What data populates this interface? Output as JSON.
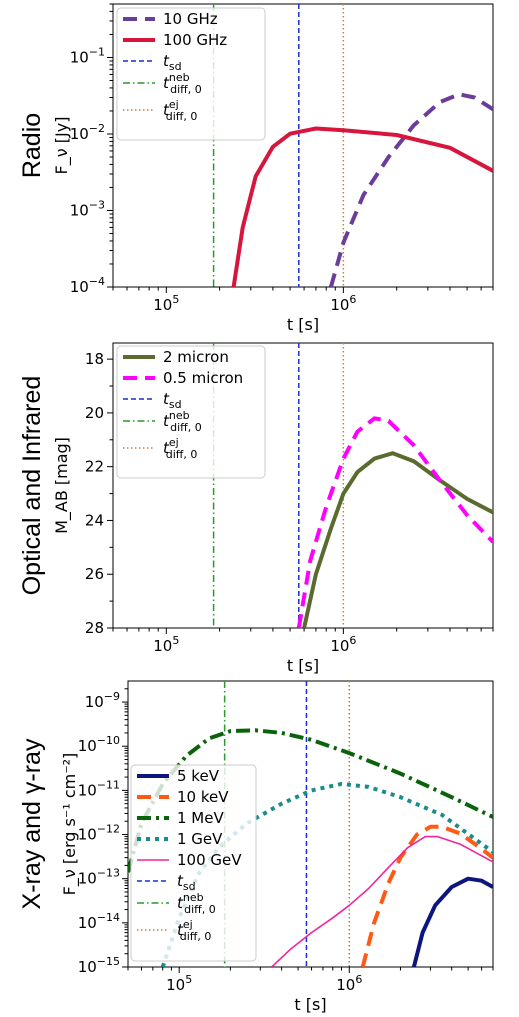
{
  "chart_data": [
    {
      "type": "line",
      "row_label": "Radio",
      "ylabel": "F_ν [Jy]",
      "xlabel": "t [s]",
      "xscale": "log",
      "yscale": "log",
      "xlim": [
        50000,
        7000000
      ],
      "ylim": [
        0.0001,
        0.5
      ],
      "xtick_labels": [
        {
          "value": 100000,
          "base": "10",
          "exp": "5"
        },
        {
          "value": 1000000,
          "base": "10",
          "exp": "6"
        }
      ],
      "ytick_labels": [
        {
          "value": 0.0001,
          "base": "10",
          "exp": "−4"
        },
        {
          "value": 0.001,
          "base": "10",
          "exp": "−3"
        },
        {
          "value": 0.01,
          "base": "10",
          "exp": "−2"
        },
        {
          "value": 0.1,
          "base": "10",
          "exp": "−1"
        }
      ],
      "legend_position": "top-left",
      "series": [
        {
          "name": "10 GHz",
          "color": "#6a3d9a",
          "style": "dashed",
          "width": 4,
          "points": [
            [
              850000,
              0.0001
            ],
            [
              1000000,
              0.00038
            ],
            [
              1300000,
              0.0016
            ],
            [
              1800000,
              0.005
            ],
            [
              2500000,
              0.013
            ],
            [
              3500000,
              0.026
            ],
            [
              4500000,
              0.033
            ],
            [
              5500000,
              0.03
            ],
            [
              7000000,
              0.021
            ]
          ]
        },
        {
          "name": "100 GHz",
          "color": "#d6163c",
          "style": "solid",
          "width": 4,
          "points": [
            [
              240000,
              0.0001
            ],
            [
              270000,
              0.0006
            ],
            [
              320000,
              0.0028
            ],
            [
              400000,
              0.0068
            ],
            [
              500000,
              0.0101
            ],
            [
              700000,
              0.0118
            ],
            [
              1000000,
              0.0112
            ],
            [
              2000000,
              0.0097
            ],
            [
              4000000,
              0.0066
            ],
            [
              7000000,
              0.0033
            ]
          ]
        }
      ],
      "vlines": [
        {
          "name": "t_sd",
          "label_base": "t",
          "label_sub": "sd",
          "label_sup": "",
          "x": 560000,
          "color": "#1a2ed6",
          "style": "dashed"
        },
        {
          "name": "t_diff,0^neb",
          "label_base": "t",
          "label_sub": "diff, 0",
          "label_sup": "neb",
          "x": 185000,
          "color": "#2a9a2a",
          "style": "dashdot"
        },
        {
          "name": "t_diff,0^ej",
          "label_base": "t",
          "label_sub": "diff, 0",
          "label_sup": "ej",
          "x": 1000000,
          "color": "#c87f3c",
          "style": "dotted"
        }
      ]
    },
    {
      "type": "line",
      "row_label": "Optical and Infrared",
      "ylabel": "M_AB [mag]",
      "xlabel": "t [s]",
      "xscale": "log",
      "yscale": "linear",
      "y_inverted": true,
      "xlim": [
        50000,
        7000000
      ],
      "ylim": [
        28,
        17.4
      ],
      "xtick_labels": [
        {
          "value": 100000,
          "base": "10",
          "exp": "5"
        },
        {
          "value": 1000000,
          "base": "10",
          "exp": "6"
        }
      ],
      "ytick_labels": [
        {
          "value": 18,
          "text": "18"
        },
        {
          "value": 20,
          "text": "20"
        },
        {
          "value": 22,
          "text": "22"
        },
        {
          "value": 24,
          "text": "24"
        },
        {
          "value": 26,
          "text": "26"
        },
        {
          "value": 28,
          "text": "28"
        }
      ],
      "legend_position": "top-left",
      "series": [
        {
          "name": "2 micron",
          "color": "#5a6b2f",
          "style": "solid",
          "width": 4,
          "points": [
            [
              600000,
              28
            ],
            [
              700000,
              26.0
            ],
            [
              850000,
              24.3
            ],
            [
              1000000,
              23.0
            ],
            [
              1200000,
              22.2
            ],
            [
              1500000,
              21.7
            ],
            [
              1900000,
              21.5
            ],
            [
              2500000,
              21.8
            ],
            [
              3500000,
              22.5
            ],
            [
              5000000,
              23.2
            ],
            [
              7000000,
              23.7
            ]
          ]
        },
        {
          "name": "0.5 micron",
          "color": "#ff00ff",
          "style": "dashed",
          "width": 4,
          "points": [
            [
              560000,
              28
            ],
            [
              650000,
              25.5
            ],
            [
              800000,
              23.5
            ],
            [
              1000000,
              21.7
            ],
            [
              1200000,
              20.7
            ],
            [
              1500000,
              20.2
            ],
            [
              1800000,
              20.3
            ],
            [
              2500000,
              21.2
            ],
            [
              3500000,
              22.5
            ],
            [
              5000000,
              23.8
            ],
            [
              7000000,
              24.8
            ]
          ]
        }
      ],
      "vlines": [
        {
          "name": "t_sd",
          "label_base": "t",
          "label_sub": "sd",
          "label_sup": "",
          "x": 560000,
          "color": "#1a2ed6",
          "style": "dashed"
        },
        {
          "name": "t_diff,0^neb",
          "label_base": "t",
          "label_sub": "diff, 0",
          "label_sup": "neb",
          "x": 185000,
          "color": "#2a9a2a",
          "style": "dashdot"
        },
        {
          "name": "t_diff,0^ej",
          "label_base": "t",
          "label_sub": "diff, 0",
          "label_sup": "ej",
          "x": 1000000,
          "color": "#c87f3c",
          "style": "dotted"
        }
      ]
    },
    {
      "type": "line",
      "row_label": "X-ray and γ-ray",
      "ylabel": "F_ν [erg s⁻¹ cm⁻²]",
      "xlabel": "t [s]",
      "xscale": "log",
      "yscale": "log",
      "xlim": [
        50000,
        7000000
      ],
      "ylim": [
        1e-15,
        3e-09
      ],
      "xtick_labels": [
        {
          "value": 100000,
          "base": "10",
          "exp": "5"
        },
        {
          "value": 1000000,
          "base": "10",
          "exp": "6"
        }
      ],
      "ytick_labels": [
        {
          "value": 1e-15,
          "base": "10",
          "exp": "−15"
        },
        {
          "value": 1e-14,
          "base": "10",
          "exp": "−14"
        },
        {
          "value": 1e-13,
          "base": "10",
          "exp": "−13"
        },
        {
          "value": 1e-12,
          "base": "10",
          "exp": "−12"
        },
        {
          "value": 1e-11,
          "base": "10",
          "exp": "−11"
        },
        {
          "value": 1e-10,
          "base": "10",
          "exp": "−10"
        },
        {
          "value": 1e-09,
          "base": "10",
          "exp": "−9"
        }
      ],
      "legend_position": "lower-left",
      "series": [
        {
          "name": "5 keV",
          "color": "#0d1580",
          "style": "solid",
          "width": 4,
          "points": [
            [
              2400000,
              1e-15
            ],
            [
              2700000,
              6e-15
            ],
            [
              3200000,
              2.5e-14
            ],
            [
              4000000,
              6.5e-14
            ],
            [
              5000000,
              1e-13
            ],
            [
              6000000,
              9e-14
            ],
            [
              7000000,
              6.5e-14
            ]
          ]
        },
        {
          "name": "10 keV",
          "color": "#ff5a14",
          "style": "dashed",
          "width": 4,
          "points": [
            [
              1200000,
              1e-15
            ],
            [
              1400000,
              1e-14
            ],
            [
              1700000,
              8e-14
            ],
            [
              2000000,
              3e-13
            ],
            [
              2500000,
              1e-12
            ],
            [
              3000000,
              1.5e-12
            ],
            [
              3500000,
              1.5e-12
            ],
            [
              4500000,
              1.05e-12
            ],
            [
              5500000,
              6e-13
            ],
            [
              7000000,
              3e-13
            ]
          ]
        },
        {
          "name": "1 MeV",
          "color": "#0a620a",
          "style": "dashdot",
          "width": 4,
          "points": [
            [
              50000,
              1.4e-13
            ],
            [
              60000,
              1.8e-12
            ],
            [
              80000,
              1.4e-11
            ],
            [
              110000,
              6e-11
            ],
            [
              150000,
              1.5e-10
            ],
            [
              200000,
              2.2e-10
            ],
            [
              280000,
              2.3e-10
            ],
            [
              400000,
              2e-10
            ],
            [
              600000,
              1.4e-10
            ],
            [
              1000000,
              7e-11
            ],
            [
              2000000,
              2.4e-11
            ],
            [
              4000000,
              7e-12
            ],
            [
              7000000,
              2.5e-12
            ]
          ]
        },
        {
          "name": "1 GeV",
          "color": "#1a8c8c",
          "style": "dotted",
          "width": 4,
          "points": [
            [
              80000,
              1e-15
            ],
            [
              100000,
              1.3e-14
            ],
            [
              130000,
              1.3e-13
            ],
            [
              170000,
              5e-13
            ],
            [
              250000,
              1.8e-12
            ],
            [
              400000,
              5e-12
            ],
            [
              600000,
              1e-11
            ],
            [
              900000,
              1.4e-11
            ],
            [
              1300000,
              1.2e-11
            ],
            [
              2000000,
              7e-12
            ],
            [
              3500000,
              2.8e-12
            ],
            [
              7000000,
              4e-13
            ]
          ]
        },
        {
          "name": "100 GeV",
          "color": "#f0269a",
          "style": "solid",
          "width": 1.6,
          "points": [
            [
              350000,
              1e-15
            ],
            [
              450000,
              2.5e-15
            ],
            [
              600000,
              6e-15
            ],
            [
              800000,
              1.3e-14
            ],
            [
              1000000,
              2.5e-14
            ],
            [
              1300000,
              6e-14
            ],
            [
              1700000,
              1.8e-13
            ],
            [
              2200000,
              5e-13
            ],
            [
              2800000,
              9e-13
            ],
            [
              3300000,
              9e-13
            ],
            [
              4500000,
              6e-13
            ],
            [
              7000000,
              2.4e-13
            ]
          ]
        }
      ],
      "vlines": [
        {
          "name": "t_sd",
          "label_base": "t",
          "label_sub": "sd",
          "label_sup": "",
          "x": 560000,
          "color": "#1a2ed6",
          "style": "dashed"
        },
        {
          "name": "t_diff,0^neb",
          "label_base": "t",
          "label_sub": "diff, 0",
          "label_sup": "neb",
          "x": 185000,
          "color": "#2a9a2a",
          "style": "dashdot"
        },
        {
          "name": "t_diff,0^ej",
          "label_base": "t",
          "label_sub": "diff, 0",
          "label_sup": "ej",
          "x": 1000000,
          "color": "#c87f3c",
          "style": "dotted"
        }
      ]
    }
  ]
}
